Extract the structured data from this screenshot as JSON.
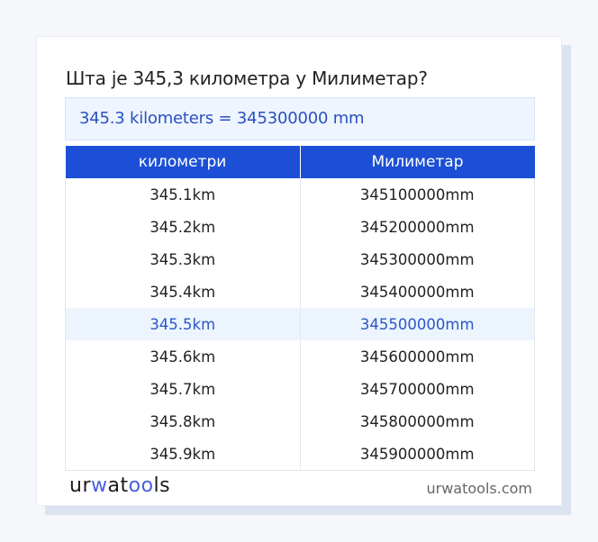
{
  "title": "Шта је 345,3 километра у Милиметар?",
  "result": "345.3 kilometers = 345300000 mm",
  "table": {
    "headers": [
      "километри",
      "Милиметар"
    ],
    "rows": [
      [
        "345.1km",
        "345100000mm"
      ],
      [
        "345.2km",
        "345200000mm"
      ],
      [
        "345.3km",
        "345300000mm"
      ],
      [
        "345.4km",
        "345400000mm"
      ],
      [
        "345.5km",
        "345500000mm"
      ],
      [
        "345.6km",
        "345600000mm"
      ],
      [
        "345.7km",
        "345700000mm"
      ],
      [
        "345.8km",
        "345800000mm"
      ],
      [
        "345.9km",
        "345900000mm"
      ]
    ],
    "highlighted_row": 4
  },
  "footer": {
    "logo": "urwatools",
    "logo_parts": [
      "ur",
      "w",
      "at",
      "oo",
      "ls"
    ],
    "site": "urwatools.com"
  },
  "colors": {
    "header": "#1c4fd6",
    "accent_text": "#2d55c8",
    "highlight_bg": "#ecf5fe"
  }
}
